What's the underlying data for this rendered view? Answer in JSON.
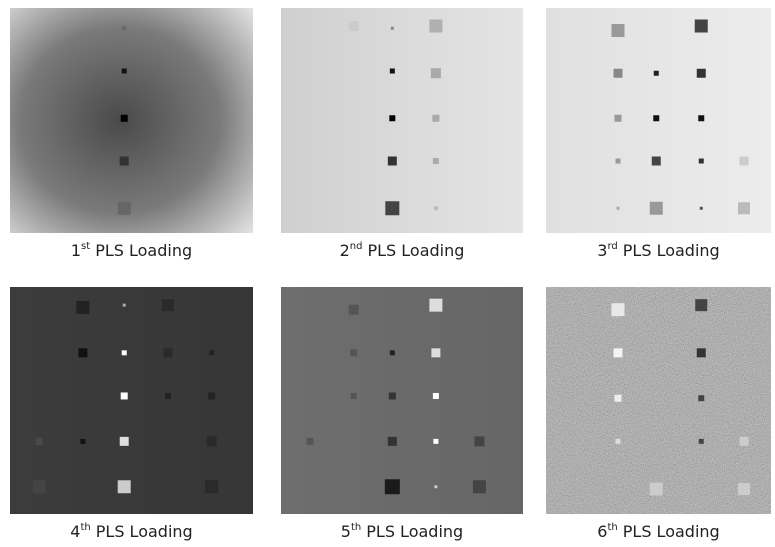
{
  "panels": [
    {
      "caption": {
        "number": "1",
        "suffix": "st",
        "text": "PLS Loading"
      }
    },
    {
      "caption": {
        "number": "2",
        "suffix": "nd",
        "text": "PLS Loading"
      }
    },
    {
      "caption": {
        "number": "3",
        "suffix": "rd",
        "text": "PLS Loading"
      }
    },
    {
      "caption": {
        "number": "4",
        "suffix": "th",
        "text": "PLS Loading"
      }
    },
    {
      "caption": {
        "number": "5",
        "suffix": "th",
        "text": "PLS Loading"
      }
    },
    {
      "caption": {
        "number": "6",
        "suffix": "th",
        "text": "PLS Loading"
      }
    }
  ]
}
